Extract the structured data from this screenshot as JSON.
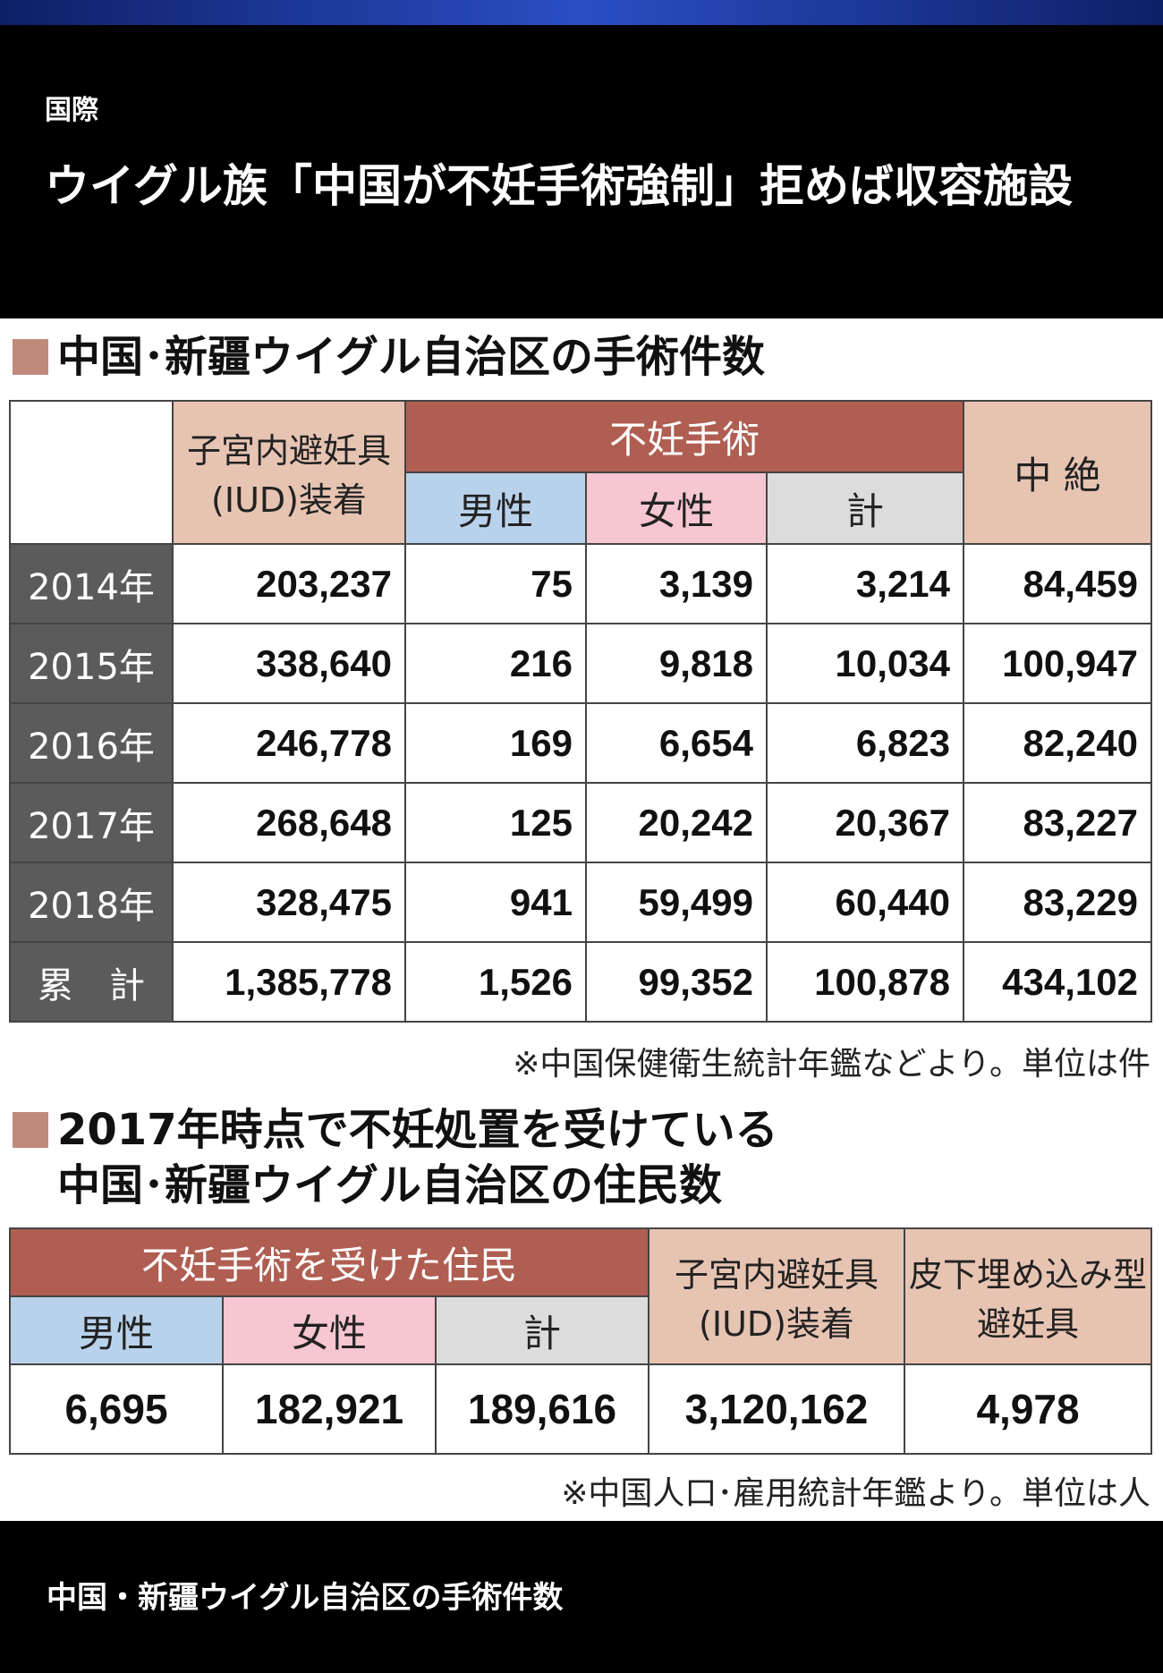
{
  "header": {
    "category": "国際",
    "headline": "ウイグル族「中国が不妊手術強制」拒めば収容施設"
  },
  "table1": {
    "title": "中国･新疆ウイグル自治区の手術件数",
    "col_iud": "子宮内避妊具(IUD)装着",
    "col_sterilization": "不妊手術",
    "col_male": "男性",
    "col_female": "女性",
    "col_total": "計",
    "col_abortion": "中 絶",
    "rows": [
      {
        "label": "2014年",
        "iud": "203,237",
        "male": "75",
        "female": "3,139",
        "total": "3,214",
        "abortion": "84,459"
      },
      {
        "label": "2015年",
        "iud": "338,640",
        "male": "216",
        "female": "9,818",
        "total": "10,034",
        "abortion": "100,947"
      },
      {
        "label": "2016年",
        "iud": "246,778",
        "male": "169",
        "female": "6,654",
        "total": "6,823",
        "abortion": "82,240"
      },
      {
        "label": "2017年",
        "iud": "268,648",
        "male": "125",
        "female": "20,242",
        "total": "20,367",
        "abortion": "83,227"
      },
      {
        "label": "2018年",
        "iud": "328,475",
        "male": "941",
        "female": "59,499",
        "total": "60,440",
        "abortion": "83,229"
      },
      {
        "label": "累　計",
        "iud": "1,385,778",
        "male": "1,526",
        "female": "99,352",
        "total": "100,878",
        "abortion": "434,102"
      }
    ],
    "note": "※中国保健衛生統計年鑑などより。単位は件"
  },
  "table2": {
    "title_line1": "2017年時点で不妊処置を受けている",
    "title_line2": "中国･新疆ウイグル自治区の住民数",
    "col_sterilized": "不妊手術を受けた住民",
    "col_male": "男性",
    "col_female": "女性",
    "col_total": "計",
    "col_iud": "子宮内避妊具(IUD)装着",
    "col_implant": "皮下埋め込み型避妊具",
    "values": {
      "male": "6,695",
      "female": "182,921",
      "total": "189,616",
      "iud": "3,120,162",
      "implant": "4,978"
    },
    "note": "※中国人口･雇用統計年鑑より。単位は人"
  },
  "footer": {
    "caption": "中国・新疆ウイグル自治区の手術件数"
  }
}
